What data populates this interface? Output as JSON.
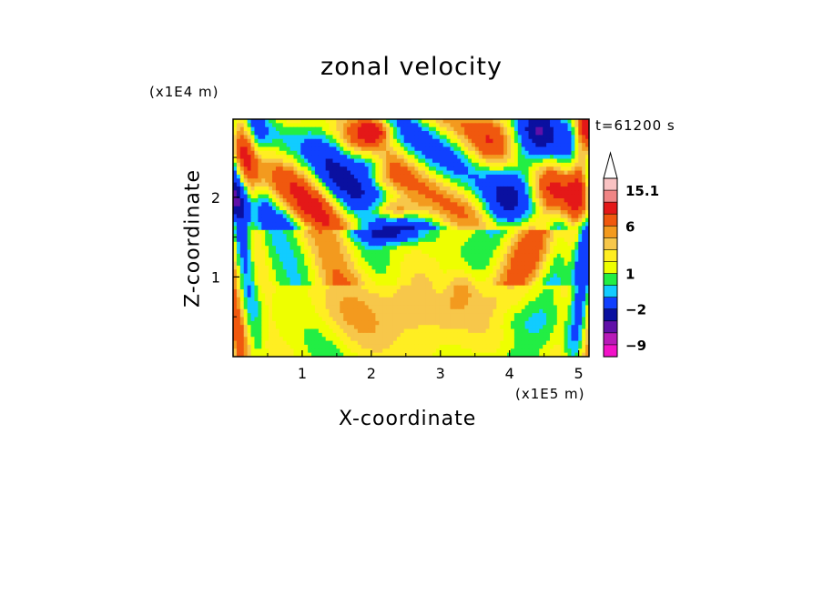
{
  "chart_data": {
    "type": "heatmap",
    "title": "zonal velocity",
    "xlabel": "X-coordinate",
    "ylabel": "Z-coordinate",
    "x_unit": "(x1E5 m)",
    "y_unit": "(x1E4 m)",
    "annotation": "t=61200 s",
    "xlim": [
      0,
      5.15
    ],
    "ylim": [
      0,
      2.98
    ],
    "x_ticks": [
      "1",
      "2",
      "3",
      "4",
      "5"
    ],
    "y_ticks": [
      "1",
      "2"
    ],
    "colorbar": {
      "levels": [
        {
          "upper": 15.1,
          "color": "#f9c2c2"
        },
        {
          "upper": 12,
          "color": "#f08585"
        },
        {
          "upper": 9,
          "color": "#e41818"
        },
        {
          "upper": 6,
          "color": "#f0580e"
        },
        {
          "upper": 4,
          "color": "#f39a1e"
        },
        {
          "upper": 3,
          "color": "#f7c74a"
        },
        {
          "upper": 2,
          "color": "#ffee22"
        },
        {
          "upper": 1,
          "color": "#eeff00"
        },
        {
          "upper": 0,
          "color": "#22ee44"
        },
        {
          "upper": -1,
          "color": "#11ccff"
        },
        {
          "upper": -2,
          "color": "#1040ff"
        },
        {
          "upper": -5,
          "color": "#0a10a0"
        },
        {
          "upper": -7,
          "color": "#6010a8"
        },
        {
          "upper": -9,
          "color": "#b81ab8"
        },
        {
          "upper": -12,
          "color": "#f212c8"
        }
      ],
      "tick_labels": [
        "15.1",
        "6",
        "1",
        "−2",
        "−9"
      ],
      "extend": "max"
    }
  }
}
